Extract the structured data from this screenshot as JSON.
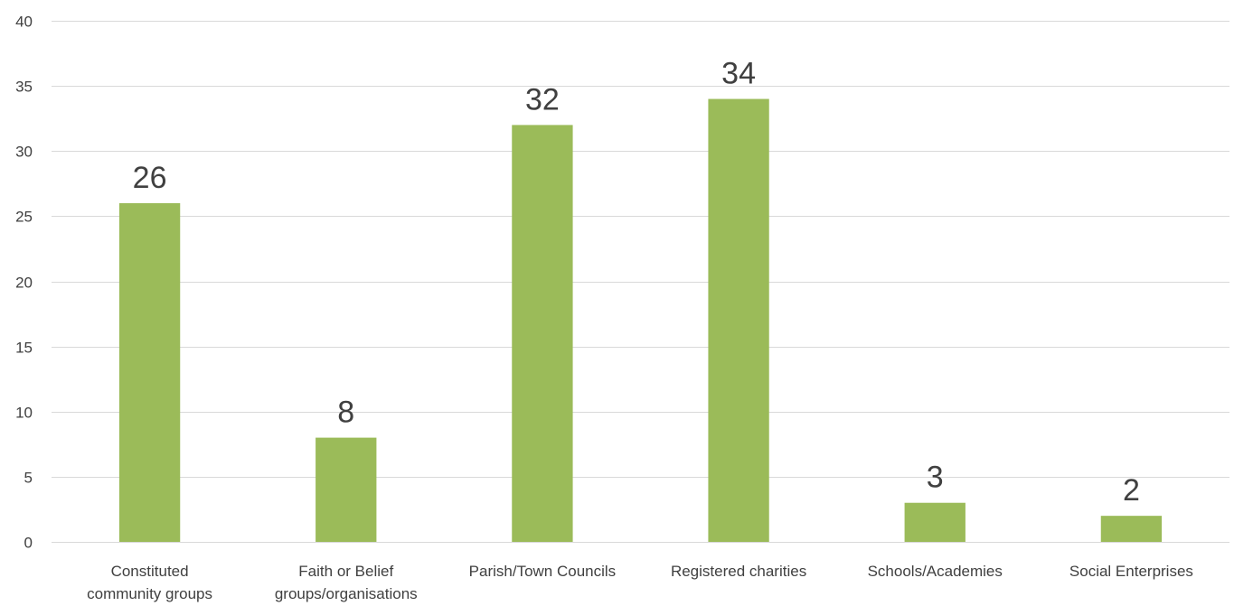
{
  "chart_data": {
    "type": "bar",
    "title": "",
    "xlabel": "",
    "ylabel": "",
    "categories": [
      "Constituted community groups",
      "Faith or Belief groups/organisations",
      "Parish/Town Councils",
      "Registered charities",
      "Schools/Academies",
      "Social Enterprises"
    ],
    "category_lines": [
      [
        "Constituted",
        "community groups"
      ],
      [
        "Faith or Belief",
        "groups/organisations"
      ],
      [
        "Parish/Town Councils"
      ],
      [
        "Registered charities"
      ],
      [
        "Schools/Academies"
      ],
      [
        "Social Enterprises"
      ]
    ],
    "values": [
      26,
      8,
      32,
      34,
      3,
      2
    ],
    "ylim": [
      0,
      40
    ],
    "yticks": [
      0,
      5,
      10,
      15,
      20,
      25,
      30,
      35,
      40
    ],
    "grid": true,
    "legend": "none",
    "data_labels": true,
    "bar_color": "#9bbb59"
  }
}
